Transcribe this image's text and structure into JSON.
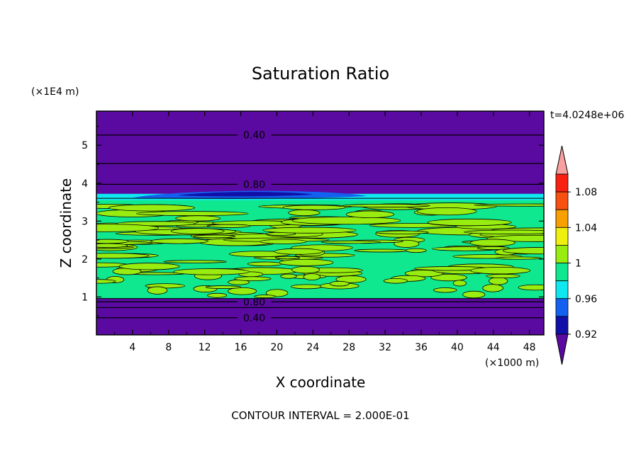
{
  "chart_data": {
    "type": "contour",
    "title": "Saturation Ratio",
    "xlabel": "X coordinate",
    "ylabel": "Z coordinate",
    "x_unit": "(×1000 m)",
    "y_unit": "(×1E4 m)",
    "time_label": "t=4.0248e+06",
    "footer": "CONTOUR INTERVAL = 2.000E-01",
    "xlim": [
      0,
      49.6
    ],
    "ylim": [
      0,
      5.9
    ],
    "x_ticks": [
      4,
      8,
      12,
      16,
      20,
      24,
      28,
      32,
      36,
      40,
      44,
      48
    ],
    "y_ticks": [
      1,
      2,
      3,
      4,
      5
    ],
    "contour_lines": [
      {
        "z": 0.45,
        "label": "0.40",
        "label_x": 17.5
      },
      {
        "z": 0.72,
        "label": "",
        "label_x": null
      },
      {
        "z": 0.87,
        "label": "0.80",
        "label_x": 17.5
      },
      {
        "z": 3.97,
        "label": "0.80",
        "label_x": 17.5
      },
      {
        "z": 4.52,
        "label": "",
        "label_x": null
      },
      {
        "z": 5.27,
        "label": "0.40",
        "label_x": 17.5
      }
    ],
    "fill_layers": [
      {
        "z_bottom": 0.0,
        "z_top": 0.96,
        "level": "<0.90"
      },
      {
        "z_bottom": 0.96,
        "z_top": 3.6,
        "level": "0.96-1.02 mottled"
      },
      {
        "z_bottom": 3.6,
        "z_top": 3.8,
        "level": "0.90-0.96 band"
      },
      {
        "z_bottom": 3.8,
        "z_top": 5.9,
        "level": "<0.90"
      }
    ],
    "colorbar": {
      "tick_labels": [
        "1.08",
        "1.04",
        "1",
        "0.96",
        "0.92"
      ],
      "colors": [
        "#5a0aa0",
        "#1010a8",
        "#1460f0",
        "#10e8f0",
        "#10e890",
        "#98ec10",
        "#f0f010",
        "#f8a000",
        "#f85010",
        "#f82010",
        "#f8a0a0"
      ]
    }
  }
}
